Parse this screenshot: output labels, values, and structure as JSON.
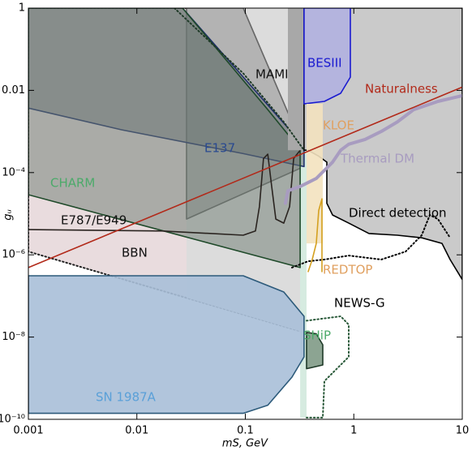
{
  "chart_data": {
    "type": "region",
    "xlabel": "mS, GeV",
    "ylabel": "gᵤ",
    "xlog": true,
    "ylog": true,
    "xlim": [
      0.001,
      10
    ],
    "ylim": [
      1e-10,
      1
    ],
    "xticks": [
      0.001,
      0.01,
      0.1,
      1,
      10
    ],
    "yticks": [
      {
        "value": 1e-10,
        "label": "10⁻¹⁰"
      },
      {
        "value": 1e-08,
        "label": "10⁻⁸"
      },
      {
        "value": 1e-06,
        "label": "10⁻⁶"
      },
      {
        "value": 0.0001,
        "label": "10⁻⁴"
      },
      0.01,
      1
    ],
    "series": [
      {
        "name": "BBN",
        "kind": "area",
        "fill": "#e9dcde",
        "color": "#222222",
        "style": "dotted",
        "opacity": 1,
        "label_color": "#111111",
        "x": [
          0.001,
          0.348,
          0.348,
          0.001
        ],
        "values": [
          1,
          1,
          1.3e-08,
          1.2e-06
        ]
      },
      {
        "kind": "area",
        "fill": "#dcdcdc",
        "color": "#dcdcdc",
        "style": "none",
        "opacity": 1,
        "x": [
          0.0287,
          0.348,
          0.348,
          0.0287
        ],
        "values": [
          1,
          1,
          1.3e-08,
          9.1e-08
        ]
      },
      {
        "kind": "area",
        "fill": "#8a8a8a",
        "color": "#666666",
        "style": "solid",
        "opacity": 0.5,
        "x": [
          0.0287,
          0.0957,
          0.348,
          0.348,
          0.0287
        ],
        "values": [
          1,
          1,
          0.00035,
          0.00014,
          7.4e-06
        ]
      },
      {
        "kind": "area",
        "fill": "#d6ebe0",
        "color": "#d6ebe0",
        "style": "none",
        "opacity": 1,
        "x": [
          0.32,
          0.367,
          0.367,
          0.32
        ],
        "values": [
          0.00035,
          0.00035,
          1.1e-10,
          1.1e-10
        ]
      },
      {
        "name": "E137",
        "kind": "area",
        "fill": "#6a7078",
        "color": "#1f2f6a",
        "style": "solid",
        "opacity": 0.55,
        "label_color": "#2a4a90",
        "x": [
          0.001,
          0.0264,
          0.348,
          0.348,
          0.0957,
          0.0072,
          0.001
        ],
        "values": [
          1,
          1,
          0.00044,
          0.00014,
          0.00029,
          0.0011,
          0.0037
        ]
      },
      {
        "name": "CHARM",
        "kind": "area",
        "fill": "#6b7a70",
        "color": "#1f4a2a",
        "style": "solid",
        "opacity": 0.5,
        "label_color": "#4caa6a",
        "x": [
          0.001,
          0.0264,
          0.161,
          0.269,
          0.32,
          0.32,
          0.001
        ],
        "values": [
          1,
          1,
          0.0034,
          0.00064,
          0.00044,
          4.9e-07,
          2.9e-05
        ]
      },
      {
        "name": "E787/E949",
        "kind": "line",
        "color": "#2a2420",
        "style": "solid",
        "opacity": 1,
        "label_color": "#111111",
        "x": [
          0.001,
          0.0171,
          0.0957,
          0.124,
          0.135,
          0.147,
          0.161,
          0.175,
          0.191,
          0.226,
          0.256,
          0.279,
          0.32
        ],
        "values": [
          4.1e-06,
          3.8e-06,
          3e-06,
          3.8e-06,
          1.5e-05,
          0.00022,
          0.00028,
          4.6e-05,
          7.4e-06,
          5.9e-06,
          1.5e-05,
          0.00022,
          0.00035
        ]
      },
      {
        "name": "MAMI",
        "kind": "area",
        "fill": "#a8a8a8",
        "color": "#a8a8a8",
        "style": "none",
        "opacity": 1,
        "label_color": "#111111",
        "x": [
          0.247,
          0.348,
          0.348,
          0.247
        ],
        "values": [
          1,
          1,
          0.00035,
          0.00035
        ]
      },
      {
        "name": "Direct detection",
        "kind": "area",
        "fill": "#cacaca",
        "color": "#000000",
        "style": "solid",
        "opacity": 1,
        "label_color": "#000000",
        "x": [
          0.348,
          10,
          10,
          7.72,
          6.5,
          4.23,
          2.52,
          1.38,
          0.898,
          0.637,
          0.564,
          0.564,
          0.475,
          0.38,
          0.348
        ],
        "values": [
          1,
          1,
          2.5e-07,
          7.7e-07,
          1.9e-06,
          2.6e-06,
          3e-06,
          3.3e-06,
          5.9e-06,
          9.3e-06,
          1.8e-05,
          0.00018,
          0.00025,
          0.00035,
          0.00035
        ]
      },
      {
        "name": "BESIII",
        "kind": "area",
        "fill": "#b4b4de",
        "color": "#1a1ad0",
        "style": "solid",
        "opacity": 1,
        "label_color": "#1a1ad0",
        "x": [
          0.348,
          0.929,
          0.929,
          0.757,
          0.536,
          0.348
        ],
        "values": [
          1,
          1,
          0.021,
          0.0085,
          0.0054,
          0.0047
        ]
      },
      {
        "name": "KLOE",
        "kind": "area",
        "fill": "#f3e2bf",
        "color": "#f3e2bf",
        "style": "none",
        "opacity": 0.9,
        "label_color": "#e0a060",
        "x": [
          0.367,
          0.518,
          0.518,
          0.367
        ],
        "values": [
          0.0047,
          0.0047,
          1.9e-06,
          1.9e-06
        ]
      },
      {
        "name": "SN 1987A",
        "kind": "area",
        "fill": "#a9bfd8",
        "color": "#2c5a7a",
        "style": "solid",
        "opacity": 0.9,
        "label_color": "#5aa0d8",
        "x": [
          0.001,
          0.0957,
          0.226,
          0.348,
          0.348,
          0.269,
          0.161,
          0.0957,
          0.001
        ],
        "values": [
          3.1e-07,
          3.1e-07,
          1.25e-07,
          3.2e-08,
          3.3e-09,
          1.06e-09,
          2.2e-10,
          1.4e-10,
          1.4e-10
        ]
      },
      {
        "name": "SHiP",
        "kind": "line",
        "color": "#2a5a3a",
        "style": "dotted",
        "opacity": 1,
        "label_color": "#4caa6a",
        "x": [
          0.367,
          0.757,
          0.898,
          0.898,
          0.536,
          0.518,
          0.367
        ],
        "values": [
          2.5e-08,
          3.2e-08,
          2e-08,
          3.3e-09,
          8.5e-10,
          1.1e-10,
          1.1e-10
        ]
      },
      {
        "kind": "area",
        "fill": "#7f9a86",
        "color": "#1f3a28",
        "style": "solid",
        "opacity": 0.9,
        "x": [
          0.367,
          0.451,
          0.518,
          0.518,
          0.367
        ],
        "values": [
          1.3e-08,
          1.2e-08,
          6.5e-09,
          2.1e-09,
          1.7e-09
        ]
      },
      {
        "name": "NEWS-G",
        "kind": "line",
        "color": "#000000",
        "style": "dotted",
        "opacity": 1,
        "label_color": "#000000",
        "x": [
          0.269,
          0.38,
          0.536,
          0.898,
          1.79,
          3.0,
          4.23,
          5.02,
          5.97,
          7.72
        ],
        "values": [
          4.9e-07,
          7e-07,
          7.7e-07,
          9.6e-07,
          7.7e-07,
          1.2e-06,
          3e-06,
          9.3e-06,
          7.4e-06,
          2.6e-06
        ]
      },
      {
        "kind": "line",
        "color": "#1f3a28",
        "style": "dotted",
        "opacity": 1,
        "x": [
          0.0222,
          0.0957,
          0.226,
          0.348
        ],
        "values": [
          1,
          0.026,
          0.0017,
          0.00035
        ]
      },
      {
        "name": "REDTOP",
        "kind": "line",
        "color": "#d4a020",
        "style": "solid",
        "opacity": 1,
        "label_color": "#e0a060",
        "x": [
          0.38,
          0.414,
          0.451,
          0.475,
          0.509,
          0.509
        ],
        "values": [
          3.9e-07,
          7.7e-07,
          1.9e-06,
          1.2e-05,
          2.3e-05,
          3.9e-07
        ]
      },
      {
        "name": "Thermal DM",
        "kind": "line",
        "color": "#a89cc0",
        "style": "thick",
        "opacity": 1,
        "label_color": "#a89cc0",
        "x": [
          0.234,
          0.247,
          0.32,
          0.451,
          0.637,
          0.757,
          0.898,
          1.27,
          1.79,
          2.52,
          3.56,
          5.97,
          10
        ],
        "values": [
          1.8e-05,
          3.6e-05,
          4.6e-05,
          7.2e-05,
          0.00018,
          0.00035,
          0.00049,
          0.00064,
          0.001,
          0.0017,
          0.0034,
          0.0054,
          0.0074
        ]
      },
      {
        "name": "Naturalness",
        "kind": "line",
        "color": "#b22a1a",
        "style": "solid",
        "opacity": 1,
        "label_color": "#b22a1a",
        "x": [
          0.001,
          10
        ],
        "values": [
          4.9e-07,
          0.012
        ]
      }
    ]
  }
}
